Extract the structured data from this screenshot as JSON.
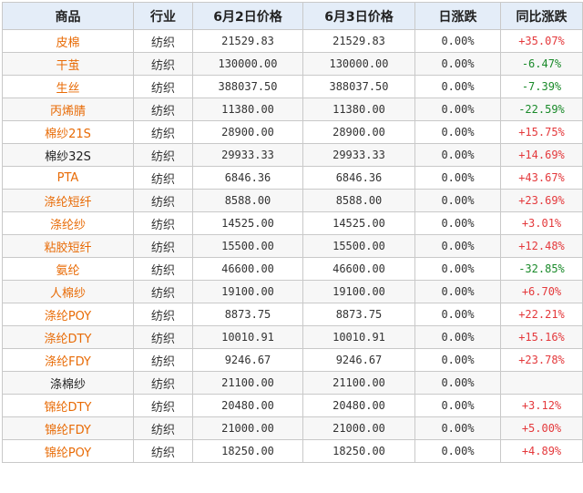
{
  "headers": [
    "商品",
    "行业",
    "6月2日价格",
    "6月3日价格",
    "日涨跌",
    "同比涨跌"
  ],
  "colors": {
    "orange": "#e86b06",
    "up": "#e4393c",
    "down": "#1a8a2a",
    "header_bg": "#e4edf8"
  },
  "rows": [
    {
      "name": "皮棉",
      "name_color": "orange",
      "industry": "纺织",
      "price_jun2": "21529.83",
      "price_jun3": "21529.83",
      "daily_change": "0.00%",
      "yoy_change": "+35.07%",
      "yoy_dir": "up"
    },
    {
      "name": "干茧",
      "name_color": "orange",
      "industry": "纺织",
      "price_jun2": "130000.00",
      "price_jun3": "130000.00",
      "daily_change": "0.00%",
      "yoy_change": "-6.47%",
      "yoy_dir": "down"
    },
    {
      "name": "生丝",
      "name_color": "orange",
      "industry": "纺织",
      "price_jun2": "388037.50",
      "price_jun3": "388037.50",
      "daily_change": "0.00%",
      "yoy_change": "-7.39%",
      "yoy_dir": "down"
    },
    {
      "name": "丙烯腈",
      "name_color": "orange",
      "industry": "纺织",
      "price_jun2": "11380.00",
      "price_jun3": "11380.00",
      "daily_change": "0.00%",
      "yoy_change": "-22.59%",
      "yoy_dir": "down"
    },
    {
      "name": "棉纱21S",
      "name_color": "orange",
      "industry": "纺织",
      "price_jun2": "28900.00",
      "price_jun3": "28900.00",
      "daily_change": "0.00%",
      "yoy_change": "+15.75%",
      "yoy_dir": "up"
    },
    {
      "name": "棉纱32S",
      "name_color": "dark",
      "industry": "纺织",
      "price_jun2": "29933.33",
      "price_jun3": "29933.33",
      "daily_change": "0.00%",
      "yoy_change": "+14.69%",
      "yoy_dir": "up"
    },
    {
      "name": "PTA",
      "name_color": "orange",
      "industry": "纺织",
      "price_jun2": "6846.36",
      "price_jun3": "6846.36",
      "daily_change": "0.00%",
      "yoy_change": "+43.67%",
      "yoy_dir": "up"
    },
    {
      "name": "涤纶短纤",
      "name_color": "orange",
      "industry": "纺织",
      "price_jun2": "8588.00",
      "price_jun3": "8588.00",
      "daily_change": "0.00%",
      "yoy_change": "+23.69%",
      "yoy_dir": "up"
    },
    {
      "name": "涤纶纱",
      "name_color": "orange",
      "industry": "纺织",
      "price_jun2": "14525.00",
      "price_jun3": "14525.00",
      "daily_change": "0.00%",
      "yoy_change": "+3.01%",
      "yoy_dir": "up"
    },
    {
      "name": "粘胶短纤",
      "name_color": "orange",
      "industry": "纺织",
      "price_jun2": "15500.00",
      "price_jun3": "15500.00",
      "daily_change": "0.00%",
      "yoy_change": "+12.48%",
      "yoy_dir": "up"
    },
    {
      "name": "氨纶",
      "name_color": "orange",
      "industry": "纺织",
      "price_jun2": "46600.00",
      "price_jun3": "46600.00",
      "daily_change": "0.00%",
      "yoy_change": "-32.85%",
      "yoy_dir": "down"
    },
    {
      "name": "人棉纱",
      "name_color": "orange",
      "industry": "纺织",
      "price_jun2": "19100.00",
      "price_jun3": "19100.00",
      "daily_change": "0.00%",
      "yoy_change": "+6.70%",
      "yoy_dir": "up"
    },
    {
      "name": "涤纶POY",
      "name_color": "orange",
      "industry": "纺织",
      "price_jun2": "8873.75",
      "price_jun3": "8873.75",
      "daily_change": "0.00%",
      "yoy_change": "+22.21%",
      "yoy_dir": "up"
    },
    {
      "name": "涤纶DTY",
      "name_color": "orange",
      "industry": "纺织",
      "price_jun2": "10010.91",
      "price_jun3": "10010.91",
      "daily_change": "0.00%",
      "yoy_change": "+15.16%",
      "yoy_dir": "up"
    },
    {
      "name": "涤纶FDY",
      "name_color": "orange",
      "industry": "纺织",
      "price_jun2": "9246.67",
      "price_jun3": "9246.67",
      "daily_change": "0.00%",
      "yoy_change": "+23.78%",
      "yoy_dir": "up"
    },
    {
      "name": "涤棉纱",
      "name_color": "dark",
      "industry": "纺织",
      "price_jun2": "21100.00",
      "price_jun3": "21100.00",
      "daily_change": "0.00%",
      "yoy_change": "",
      "yoy_dir": "up"
    },
    {
      "name": "锦纶DTY",
      "name_color": "orange",
      "industry": "纺织",
      "price_jun2": "20480.00",
      "price_jun3": "20480.00",
      "daily_change": "0.00%",
      "yoy_change": "+3.12%",
      "yoy_dir": "up"
    },
    {
      "name": "锦纶FDY",
      "name_color": "orange",
      "industry": "纺织",
      "price_jun2": "21000.00",
      "price_jun3": "21000.00",
      "daily_change": "0.00%",
      "yoy_change": "+5.00%",
      "yoy_dir": "up"
    },
    {
      "name": "锦纶POY",
      "name_color": "orange",
      "industry": "纺织",
      "price_jun2": "18250.00",
      "price_jun3": "18250.00",
      "daily_change": "0.00%",
      "yoy_change": "+4.89%",
      "yoy_dir": "up"
    }
  ]
}
